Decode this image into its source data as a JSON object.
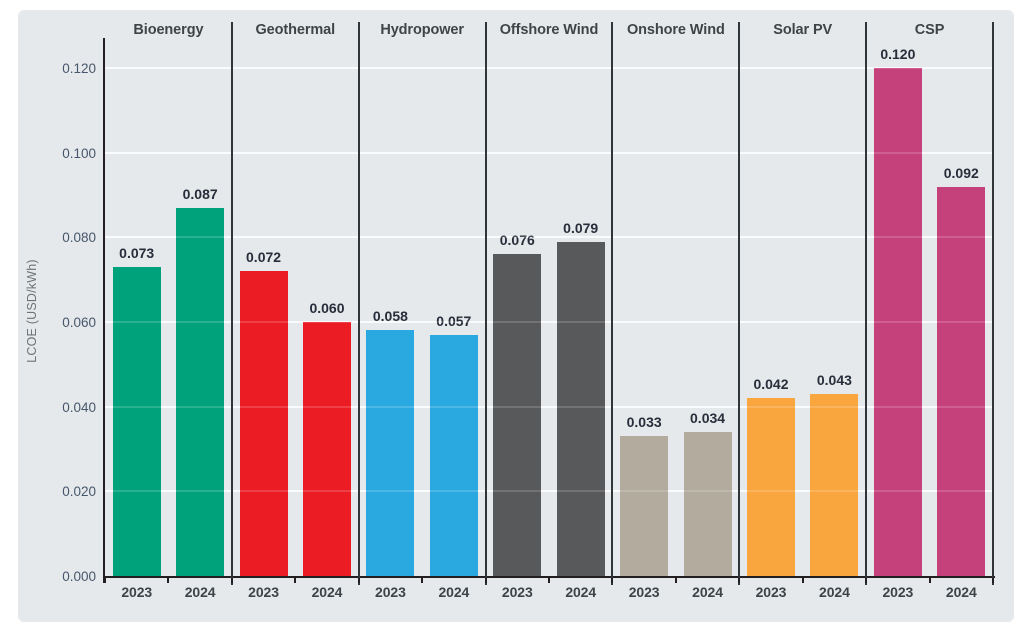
{
  "figure": {
    "background": "#ffffff",
    "panel_background": "#e5e9eb",
    "gridline_color": "#fafbfc",
    "axis_color": "#231f20",
    "divider_color": "#303539",
    "header_color": "#3f4447",
    "value_label_color": "#272d3a",
    "tick_label_color": "#47566b",
    "axis_title_color": "#6e7377"
  },
  "chart_data": {
    "type": "bar",
    "title": "",
    "xlabel": "",
    "ylabel": "LCOE (USD/kWh)",
    "ylim": [
      0,
      0.12
    ],
    "ytick_values": [
      0,
      0.02,
      0.04,
      0.06,
      0.08,
      0.1,
      0.12
    ],
    "ytick_labels": [
      "0.000",
      "0.020",
      "0.040",
      "0.060",
      "0.080",
      "0.100",
      "0.120"
    ],
    "grid": "horizontal",
    "legend": "none",
    "categories": [
      "2023",
      "2024"
    ],
    "groups": [
      {
        "name": "Bioenergy",
        "slug": "bioenergy",
        "color": "#00a27b",
        "values": [
          0.073,
          0.087
        ],
        "value_labels": [
          "0.073",
          "0.087"
        ]
      },
      {
        "name": "Geothermal",
        "slug": "geothermal",
        "color": "#ec1c24",
        "values": [
          0.072,
          0.06
        ],
        "value_labels": [
          "0.072",
          "0.060"
        ]
      },
      {
        "name": "Hydropower",
        "slug": "hydropower",
        "color": "#2aa9e0",
        "values": [
          0.058,
          0.057
        ],
        "value_labels": [
          "0.058",
          "0.057"
        ]
      },
      {
        "name": "Offshore Wind",
        "slug": "offshore-wind",
        "color": "#58595b",
        "values": [
          0.076,
          0.079
        ],
        "value_labels": [
          "0.076",
          "0.079"
        ]
      },
      {
        "name": "Onshore Wind",
        "slug": "onshore-wind",
        "color": "#b2ab9e",
        "values": [
          0.033,
          0.034
        ],
        "value_labels": [
          "0.033",
          "0.034"
        ]
      },
      {
        "name": "Solar PV",
        "slug": "solar-pv",
        "color": "#f9a63e",
        "values": [
          0.042,
          0.043
        ],
        "value_labels": [
          "0.042",
          "0.043"
        ]
      },
      {
        "name": "CSP",
        "slug": "csp",
        "color": "#c5417b",
        "values": [
          0.12,
          0.092
        ],
        "value_labels": [
          "0.120",
          "0.092"
        ]
      }
    ]
  }
}
